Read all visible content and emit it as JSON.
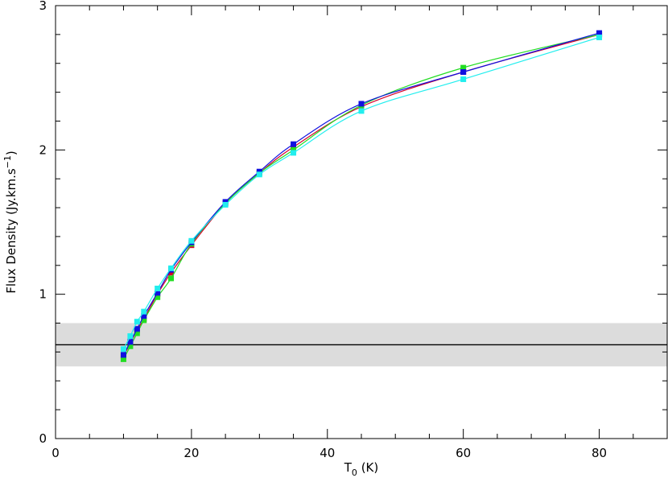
{
  "chart_data": {
    "type": "line",
    "title": "",
    "xlabel": {
      "main": "T",
      "sub": "0",
      "rest": " (K)"
    },
    "ylabel": {
      "main": "Flux Density (Jy.km.s",
      "sup": "−1",
      "rest": ")"
    },
    "xlim": [
      0,
      90
    ],
    "ylim": [
      0,
      3
    ],
    "x_ticks": [
      0,
      20,
      40,
      60,
      80
    ],
    "y_ticks": [
      0,
      1,
      2,
      3
    ],
    "x_tick_labels": [
      "0",
      "20",
      "40",
      "60",
      "80"
    ],
    "y_tick_labels": [
      "0",
      "1",
      "2",
      "3"
    ],
    "grid": false,
    "reference_line": {
      "y": 0.65,
      "color": "#000000"
    },
    "reference_band": {
      "y_low": 0.5,
      "y_high": 0.8,
      "color": "#dcdcdc"
    },
    "series": [
      {
        "color": "#d4002a",
        "x": [
          10,
          11,
          12,
          13,
          15,
          17,
          20,
          25,
          30,
          35,
          45,
          60,
          80
        ],
        "y": [
          0.57,
          0.66,
          0.75,
          0.83,
          1.0,
          1.15,
          1.34,
          1.63,
          1.84,
          2.02,
          2.3,
          2.54,
          2.8
        ]
      },
      {
        "color": "#22dd22",
        "x": [
          10,
          11,
          12,
          13,
          15,
          17,
          20,
          25,
          30,
          35,
          45,
          60,
          80
        ],
        "y": [
          0.55,
          0.64,
          0.73,
          0.82,
          0.98,
          1.11,
          1.35,
          1.63,
          1.84,
          2.0,
          2.31,
          2.57,
          2.8
        ]
      },
      {
        "color": "#1010e0",
        "x": [
          10,
          11,
          12,
          13,
          15,
          17,
          20,
          25,
          30,
          35,
          45,
          60,
          80
        ],
        "y": [
          0.58,
          0.67,
          0.76,
          0.85,
          1.01,
          1.17,
          1.36,
          1.64,
          1.85,
          2.04,
          2.32,
          2.54,
          2.81
        ]
      },
      {
        "color": "#22eeee",
        "x": [
          10,
          11,
          12,
          13,
          15,
          17,
          20,
          25,
          30,
          35,
          45,
          60,
          80
        ],
        "y": [
          0.62,
          0.71,
          0.81,
          0.88,
          1.04,
          1.18,
          1.37,
          1.62,
          1.83,
          1.98,
          2.27,
          2.49,
          2.78
        ]
      }
    ]
  }
}
